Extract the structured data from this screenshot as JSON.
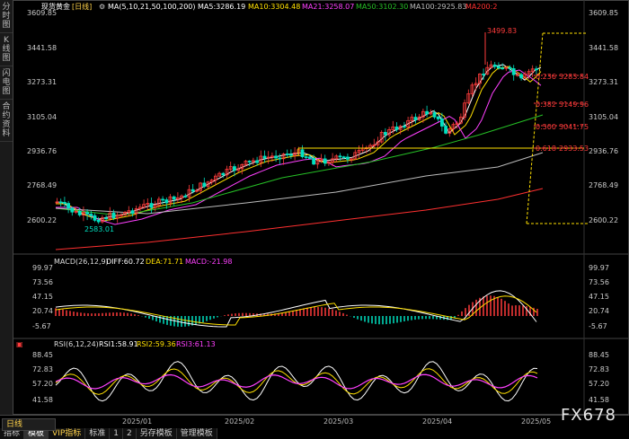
{
  "sidebar": {
    "items": [
      {
        "label": "分时图"
      },
      {
        "label": "K线图"
      },
      {
        "label": "闪电图"
      },
      {
        "label": "合约资料"
      }
    ]
  },
  "header": {
    "symbol": "现货黄金",
    "period": "[日线]",
    "ma_params": "MA(5,10,21,50,100,200)",
    "ma5": "MA5:3286.19",
    "ma10": "MA10:3304.48",
    "ma21": "MA21:3258.07",
    "ma50": "MA50:3102.30",
    "ma100": "MA100:2925.83",
    "ma200": "MA200:2"
  },
  "price_axis": {
    "left_labels": [
      "3609.85",
      "3441.58",
      "3273.31",
      "3105.04",
      "2936.76",
      "2768.49",
      "2600.22"
    ],
    "right_labels": [
      "3609.85",
      "3441.58",
      "3273.31",
      "3105.04",
      "2936.76",
      "2768.49",
      "2600.22"
    ],
    "high_label": "3499.83",
    "low_label": "2583.01"
  },
  "fib": {
    "levels": [
      {
        "ratio": "0.236",
        "price": "3283.84"
      },
      {
        "ratio": "0.382",
        "price": "3149.96"
      },
      {
        "ratio": "0.500",
        "price": "3041.75"
      },
      {
        "ratio": "0.618",
        "price": "2933.53"
      }
    ]
  },
  "macd": {
    "title": "MACD(26,12,9)",
    "diff": "DIFF:60.72",
    "dea": "DEA:71.71",
    "macd": "MACD:-21.98",
    "labels": [
      "99.97",
      "73.56",
      "47.15",
      "20.74",
      "-5.67"
    ]
  },
  "rsi": {
    "title": "RSI(6,12,24)",
    "rsi1": "RSI1:58.91",
    "rsi2": "RSI2:59.36",
    "rsi3": "RSI3:61.13",
    "labels": [
      "88.45",
      "72.83",
      "57.20",
      "41.58"
    ]
  },
  "dates": [
    "2025/01",
    "2025/02",
    "2025/03",
    "2025/04",
    "2025/05"
  ],
  "bottom": {
    "period_label": "日线",
    "tabs": [
      "指标",
      "模板",
      "VIP指标",
      "标准",
      "1",
      "2",
      "另存模板",
      "管理模板"
    ]
  },
  "watermark": "FX678",
  "colors": {
    "up": "#ff3b3b",
    "down": "#00e0c0",
    "ma5": "#ffffff",
    "ma10": "#ffe000",
    "ma21": "#ff40ff",
    "ma50": "#26c026",
    "ma100": "#bbbbbb",
    "ma200": "#ff3030"
  }
}
